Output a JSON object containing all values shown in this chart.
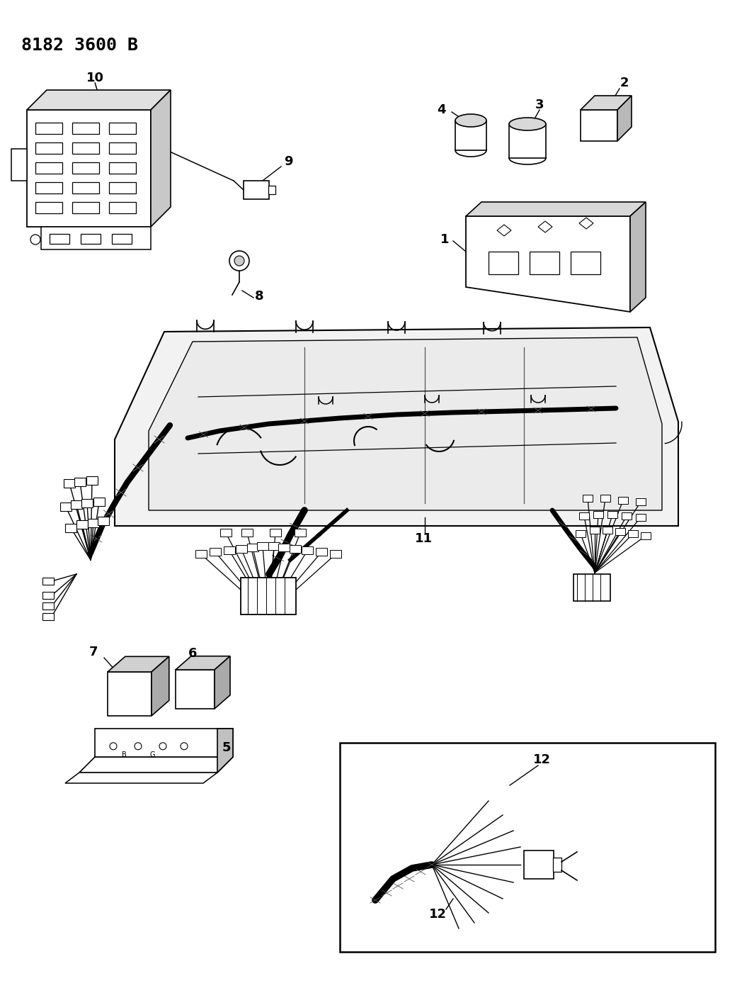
{
  "title": "8182 3600 B",
  "bg": "#ffffff",
  "lc": "#000000",
  "fig_w": 10.48,
  "fig_h": 13.94,
  "dpi": 100
}
